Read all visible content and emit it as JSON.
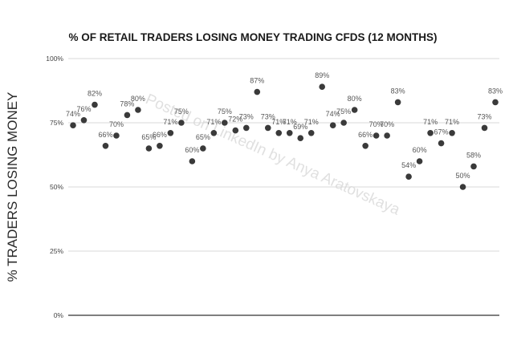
{
  "watermark": "Posted on LinkedIn by Anya Aratovskaya",
  "chart_data": {
    "type": "scatter",
    "title": "% OF RETAIL TRADERS LOSING MONEY TRADING CFDS (12 MONTHS)",
    "xlabel": "",
    "ylabel": "% TRADERS LOSING MONEY",
    "ylim": [
      0,
      100
    ],
    "yticks": [
      "0%",
      "25%",
      "50%",
      "75%",
      "100%"
    ],
    "grid": true,
    "legend": "none",
    "marker_color": "#3a3a3a",
    "values": [
      74,
      76,
      82,
      66,
      70,
      78,
      80,
      65,
      66,
      71,
      75,
      60,
      65,
      71,
      75,
      72,
      73,
      87,
      73,
      71,
      71,
      69,
      71,
      89,
      74,
      75,
      80,
      66,
      70,
      70,
      83,
      54,
      60,
      71,
      67,
      71,
      50,
      58,
      73,
      83
    ],
    "labels": [
      "74%",
      "76%",
      "82%",
      "66%",
      "70%",
      "78%",
      "80%",
      "65%",
      "66%",
      "71%",
      "75%",
      "60%",
      "65%",
      "71%",
      "75%",
      "72%",
      "73%",
      "87%",
      "73%",
      "71%",
      "71%",
      "69%",
      "71%",
      "89%",
      "74%",
      "75%",
      "80%",
      "66%",
      "70%",
      "70%",
      "83%",
      "54%",
      "60%",
      "71%",
      "67%",
      "71%",
      "50%",
      "58%",
      "73%",
      "83%"
    ]
  }
}
